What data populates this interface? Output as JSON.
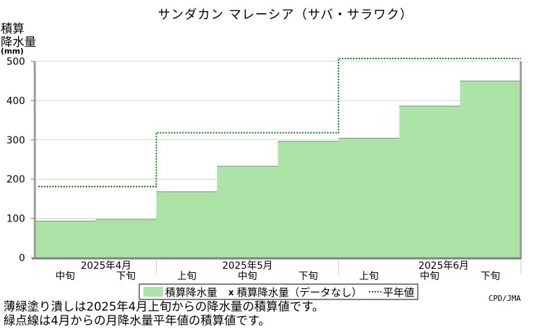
{
  "chart_data": {
    "type": "area",
    "title": "サンダカン マレーシア（サバ・サラワク）",
    "ylabel_lines": [
      "積算",
      "降水量",
      "(mm)"
    ],
    "ylim": [
      0,
      500
    ],
    "yticks": [
      0,
      100,
      200,
      300,
      400,
      500
    ],
    "periods": [
      "2025年4月中旬",
      "2025年4月下旬",
      "2025年5月上旬",
      "2025年5月中旬",
      "2025年5月下旬",
      "2025年6月上旬",
      "2025年6月中旬",
      "2025年6月下旬"
    ],
    "months": [
      {
        "label": "2025年4月",
        "dekads": [
          "中旬",
          "下旬"
        ]
      },
      {
        "label": "2025年5月",
        "dekads": [
          "上旬",
          "中旬",
          "下旬"
        ]
      },
      {
        "label": "2025年6月",
        "dekads": [
          "上旬",
          "中旬",
          "下旬"
        ]
      }
    ],
    "series": [
      {
        "name": "積算降水量",
        "style": "fill",
        "color": "#ace4a8",
        "values": [
          93,
          97,
          168,
          233,
          296,
          304,
          386,
          450
        ]
      },
      {
        "name": "平年値",
        "style": "dotted",
        "color": "#008000",
        "values": [
          181,
          181,
          318,
          318,
          318,
          507,
          507,
          507
        ]
      }
    ],
    "missing_marker": {
      "symbol": "x",
      "label": "積算降水量（データなし）"
    },
    "legend": {
      "placement": "bottom"
    },
    "grid": true,
    "credit": "CPD/JMA"
  },
  "notes": [
    "薄緑塗り潰しは2025年4月上旬からの降水量の積算値です。",
    "緑点線は4月からの月降水量平年値の積算値です。"
  ]
}
